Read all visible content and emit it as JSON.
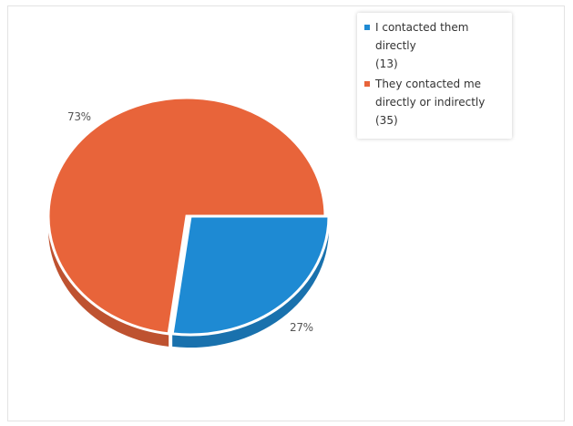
{
  "chart_data": {
    "type": "pie",
    "title": "",
    "slices": [
      {
        "label": "I contacted them directly",
        "value": 13,
        "count_label": "(13)",
        "percent_label": "27%",
        "color": "#1e8ad3"
      },
      {
        "label": "They contacted me directly or indirectly",
        "value": 35,
        "count_label": "(35)",
        "percent_label": "73%",
        "color": "#e8643a"
      }
    ],
    "legend_position": "top-right",
    "style": "3d-exploded"
  }
}
